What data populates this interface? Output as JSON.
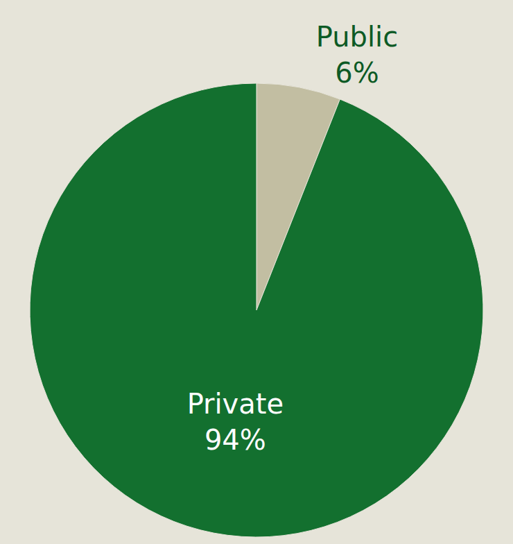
{
  "chart_data": {
    "type": "pie",
    "categories": [
      "Public",
      "Private"
    ],
    "values": [
      6,
      94
    ],
    "value_labels": [
      "6%",
      "94%"
    ],
    "colors": [
      "#c2bea2",
      "#13702f"
    ],
    "data_labels": true
  }
}
